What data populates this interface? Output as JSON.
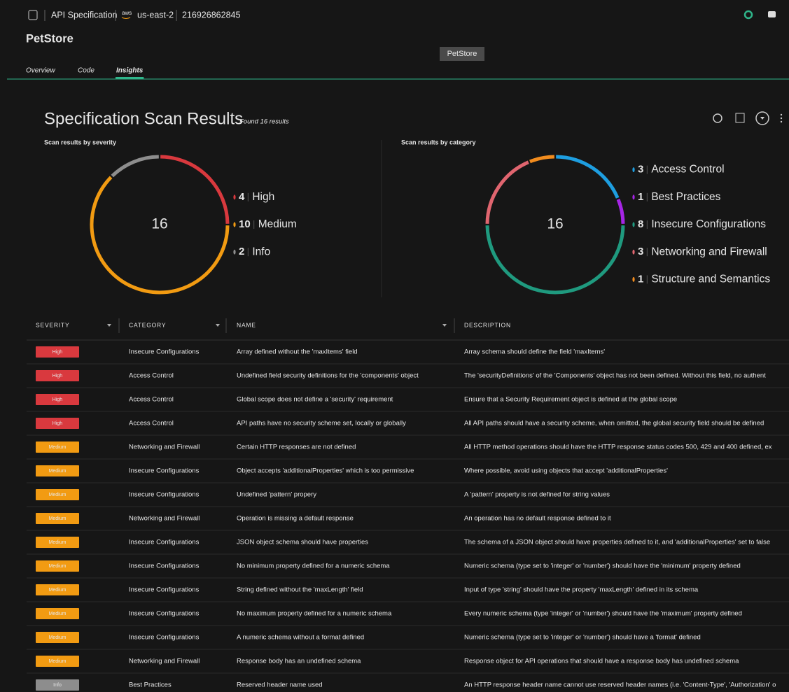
{
  "header": {
    "breadcrumb": [
      "API Specification",
      "us-east-2",
      "216926862845"
    ],
    "aws": "aws",
    "title": "PetStore",
    "tooltip": "PetStore"
  },
  "tabs": {
    "items": [
      "Overview",
      "Code",
      "Insights"
    ],
    "active": 2
  },
  "scan": {
    "title": "Specification Scan Results",
    "subtitle": "Found 16 results"
  },
  "chart_data": [
    {
      "type": "donut",
      "title": "Scan results by severity",
      "center_label": 16,
      "categories": [
        "High",
        "Medium",
        "Info"
      ],
      "values": [
        4,
        10,
        2
      ],
      "colors": [
        "#d9393e",
        "#f29b12",
        "#8d8d8d"
      ]
    },
    {
      "type": "donut",
      "title": "Scan results by category",
      "center_label": 16,
      "categories": [
        "Access Control",
        "Best Practices",
        "Insecure Configurations",
        "Networking and Firewall",
        "Structure and Semantics"
      ],
      "values": [
        3,
        1,
        8,
        3,
        1
      ],
      "colors": [
        "#1e9ee0",
        "#a625e6",
        "#1f9a7f",
        "#e0656f",
        "#f28c1e"
      ]
    }
  ],
  "table": {
    "columns": [
      "SEVERITY",
      "CATEGORY",
      "NAME",
      "DESCRIPTION"
    ],
    "rows": [
      [
        "High",
        "Insecure Configurations",
        "Array defined without the 'maxItems' field",
        "Array schema should define the field 'maxItems'"
      ],
      [
        "High",
        "Access Control",
        "Undefined field security definitions for the 'components' object",
        "The 'securityDefinitions' of the 'Components' object has not been defined. Without this field, no authent"
      ],
      [
        "High",
        "Access Control",
        "Global scope does not define a 'security' requirement",
        "Ensure that a Security Requirement object is defined at the global scope"
      ],
      [
        "High",
        "Access Control",
        "API paths have no security scheme set, locally or globally",
        "All API paths should have a security scheme, when omitted, the global security field should be defined"
      ],
      [
        "Medium",
        "Networking and Firewall",
        "Certain HTTP responses are not defined",
        "All HTTP method operations should have the HTTP response status codes 500, 429 and 400 defined, ex"
      ],
      [
        "Medium",
        "Insecure Configurations",
        "Object accepts 'additionalProperties' which is too permissive",
        "Where possible, avoid using objects that accept 'additionalProperties'"
      ],
      [
        "Medium",
        "Insecure Configurations",
        "Undefined 'pattern' propery",
        "A 'pattern' property is not defined for string values"
      ],
      [
        "Medium",
        "Networking and Firewall",
        "Operation is missing a default response",
        "An operation has no default response defined to it"
      ],
      [
        "Medium",
        "Insecure Configurations",
        "JSON object schema should have properties",
        "The schema of a JSON object should have properties defined to it, and 'additionalProperties' set to false"
      ],
      [
        "Medium",
        "Insecure Configurations",
        "No minimum property defined for a numeric schema",
        "Numeric schema (type set to 'integer' or 'number') should have the 'minimum' property defined"
      ],
      [
        "Medium",
        "Insecure Configurations",
        "String defined without the 'maxLength' field",
        "Input of type 'string' should have the property 'maxLength' defined in its schema"
      ],
      [
        "Medium",
        "Insecure Configurations",
        "No maximum property defined for a numeric schema",
        "Every numeric schema (type 'integer' or 'number') should have the 'maximum' property defined"
      ],
      [
        "Medium",
        "Insecure Configurations",
        "A numeric schema without a format defined",
        "Numeric schema (type set to 'integer' or 'number') should have a 'format' defined"
      ],
      [
        "Medium",
        "Networking and Firewall",
        "Response body has an undefined schema",
        "Response object for API operations that should have a response body has undefined schema"
      ],
      [
        "Info",
        "Best Practices",
        "Reserved header name used",
        "An HTTP response header name cannot use reserved header names (i.e. 'Content-Type', 'Authorization' o"
      ]
    ]
  }
}
